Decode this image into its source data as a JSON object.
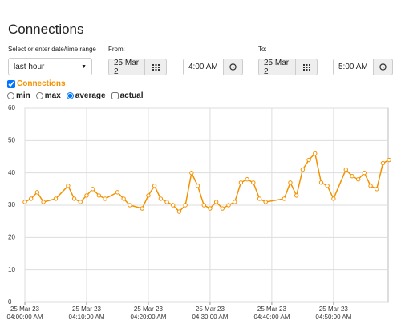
{
  "title": "Connections",
  "range_label": "Select or enter date/time range",
  "range_select": "last hour",
  "from_label": "From:",
  "from_date": "25 Mar 2",
  "from_time": "4:00 AM",
  "to_label": "To:",
  "to_date": "25 Mar 2",
  "to_time": "5:00 AM",
  "modes": [
    "min",
    "max",
    "average"
  ],
  "selected_mode": "average",
  "actual_label": "actual",
  "chart_data": {
    "type": "line",
    "x": [
      "04:00",
      "04:01",
      "04:02",
      "04:03",
      "04:05",
      "04:07",
      "04:08",
      "04:09",
      "04:10",
      "04:11",
      "04:12",
      "04:13",
      "04:15",
      "04:16",
      "04:17",
      "04:19",
      "04:20",
      "04:21",
      "04:22",
      "04:23",
      "04:24",
      "04:25",
      "04:26",
      "04:27",
      "04:28",
      "04:29",
      "04:30",
      "04:31",
      "04:32",
      "04:33",
      "04:34",
      "04:35",
      "04:36",
      "04:37",
      "04:38",
      "04:39",
      "04:42",
      "04:43",
      "04:44",
      "04:45",
      "04:46",
      "04:47",
      "04:48",
      "04:49",
      "04:50",
      "04:52",
      "04:53",
      "04:54",
      "04:55",
      "04:56",
      "04:57",
      "04:58",
      "04:59"
    ],
    "series": [
      {
        "name": "Connections",
        "color": "#f39200",
        "values": [
          31,
          32,
          34,
          31,
          32,
          36,
          32,
          31,
          33,
          35,
          33,
          32,
          34,
          32,
          30,
          29,
          33,
          36,
          32,
          31,
          30,
          28,
          30,
          40,
          36,
          30,
          29,
          31,
          29,
          30,
          31,
          37,
          38,
          37,
          32,
          31,
          32,
          37,
          33,
          41,
          44,
          46,
          37,
          36,
          32,
          41,
          39,
          38,
          40,
          36,
          35,
          43,
          44
        ]
      }
    ],
    "xlim": [
      "04:00",
      "04:59"
    ],
    "xticks": [
      {
        "value": "04:00",
        "label": [
          "25 Mar 23",
          "04:00:00 AM"
        ]
      },
      {
        "value": "04:10",
        "label": [
          "25 Mar 23",
          "04:10:00 AM"
        ]
      },
      {
        "value": "04:20",
        "label": [
          "25 Mar 23",
          "04:20:00 AM"
        ]
      },
      {
        "value": "04:30",
        "label": [
          "25 Mar 23",
          "04:30:00 AM"
        ]
      },
      {
        "value": "04:40",
        "label": [
          "25 Mar 23",
          "04:40:00 AM"
        ]
      },
      {
        "value": "04:50",
        "label": [
          "25 Mar 23",
          "04:50:00 AM"
        ]
      }
    ],
    "ylim": [
      0,
      60
    ],
    "yticks": [
      0,
      10,
      20,
      30,
      40,
      50,
      60
    ],
    "grid": true
  }
}
